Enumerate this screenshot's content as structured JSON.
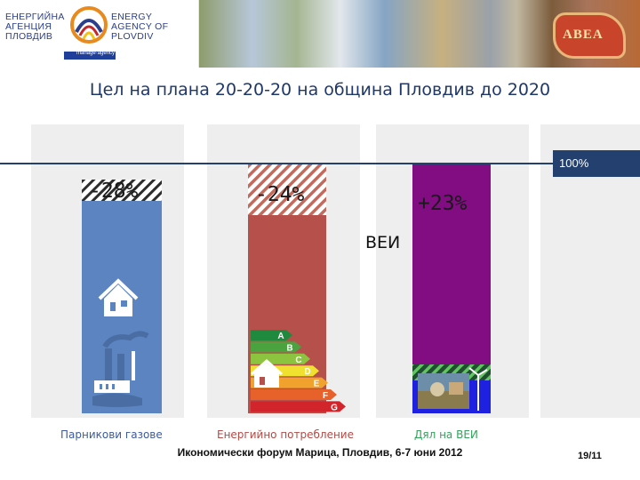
{
  "header": {
    "logo_bg_lines": [
      "ЕНЕРГИЙНА",
      "АГЕНЦИЯ",
      "ПЛОВДИВ"
    ],
    "logo_en_lines": [
      "ENERGY",
      "AGENCY OF",
      "PLOVDIV"
    ],
    "eu_strip_text": "manage·agency",
    "partner_logo_text": "ABEA"
  },
  "colors": {
    "blue_bar": "#5b84c0",
    "red_bar": "#b6504b",
    "purple_bar": "#820c82",
    "blue_base": "#1e22e0",
    "reference_line": "#24406e",
    "background_column": "#eeeeee",
    "title": "#1f3868"
  },
  "chart_data": {
    "type": "bar",
    "title": "Цел на плана 20-20-20 на община Пловдив до 2020",
    "reference": {
      "value": 100,
      "label": "100%"
    },
    "ylim": [
      0,
      100
    ],
    "categories": [
      "Парникови газове",
      "Енергийно потребление",
      "Дял на ВЕИ"
    ],
    "category_colors": [
      "#3c5b9c",
      "#b24a45",
      "#33a35b"
    ],
    "bars": [
      {
        "category": "Парникови газове",
        "solid_percent": 72,
        "hatched_percent": 28,
        "label": "-28%",
        "hatched_on": "top",
        "base": 0
      },
      {
        "category": "Энергийно потребление",
        "solid_percent": 76,
        "hatched_percent": 24,
        "label": "-24%",
        "hatched_on": "top",
        "base": 0
      },
      {
        "category": "Дял на ВЕИ",
        "solid_percent": 23,
        "hatched_percent": 7,
        "base_percent": 7,
        "label": "+23%",
        "hatched_on": "bottom"
      }
    ],
    "annotation": "ВЕИ",
    "energy_classes": [
      "A",
      "B",
      "C",
      "D",
      "E",
      "F",
      "G"
    ]
  },
  "footer": {
    "event": "Икономически форум Марица, Пловдив, 6-7 юни 2012",
    "page": "19/11"
  }
}
